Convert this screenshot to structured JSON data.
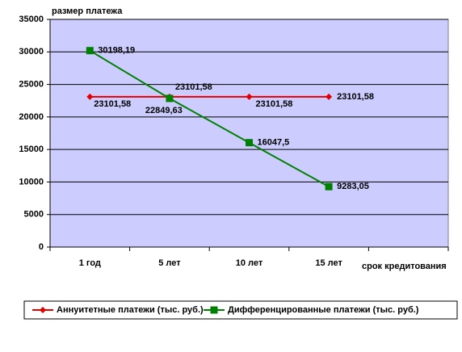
{
  "chart_data": {
    "type": "line",
    "y_label": "размер платежа",
    "x_label": "срок кредитования",
    "categories": [
      "1 год",
      "5 лет",
      "10 лет",
      "15 лет",
      null
    ],
    "series": [
      {
        "name": "Аннуитетные платежи (тыс. руб.)",
        "color": "#e00000",
        "marker": "diamond",
        "values": [
          23101.58,
          23101.58,
          23101.58,
          23101.58,
          null
        ],
        "value_labels": [
          "23101,58",
          "23101,58",
          "23101,58",
          "23101,58",
          null
        ]
      },
      {
        "name": "Дифференцированные платежи  (тыс. руб.)",
        "color": "#008000",
        "marker": "square",
        "values": [
          30198.19,
          22849.63,
          16047.5,
          9283.05,
          null
        ],
        "value_labels": [
          "30198,19",
          "22849,63",
          "16047,5",
          "9283,05",
          null
        ]
      }
    ],
    "ylim": [
      0,
      35000
    ],
    "yticks": [
      0,
      5000,
      10000,
      15000,
      20000,
      25000,
      30000,
      35000
    ],
    "grid": true,
    "background": "#ccccff",
    "legend": "bottom"
  }
}
